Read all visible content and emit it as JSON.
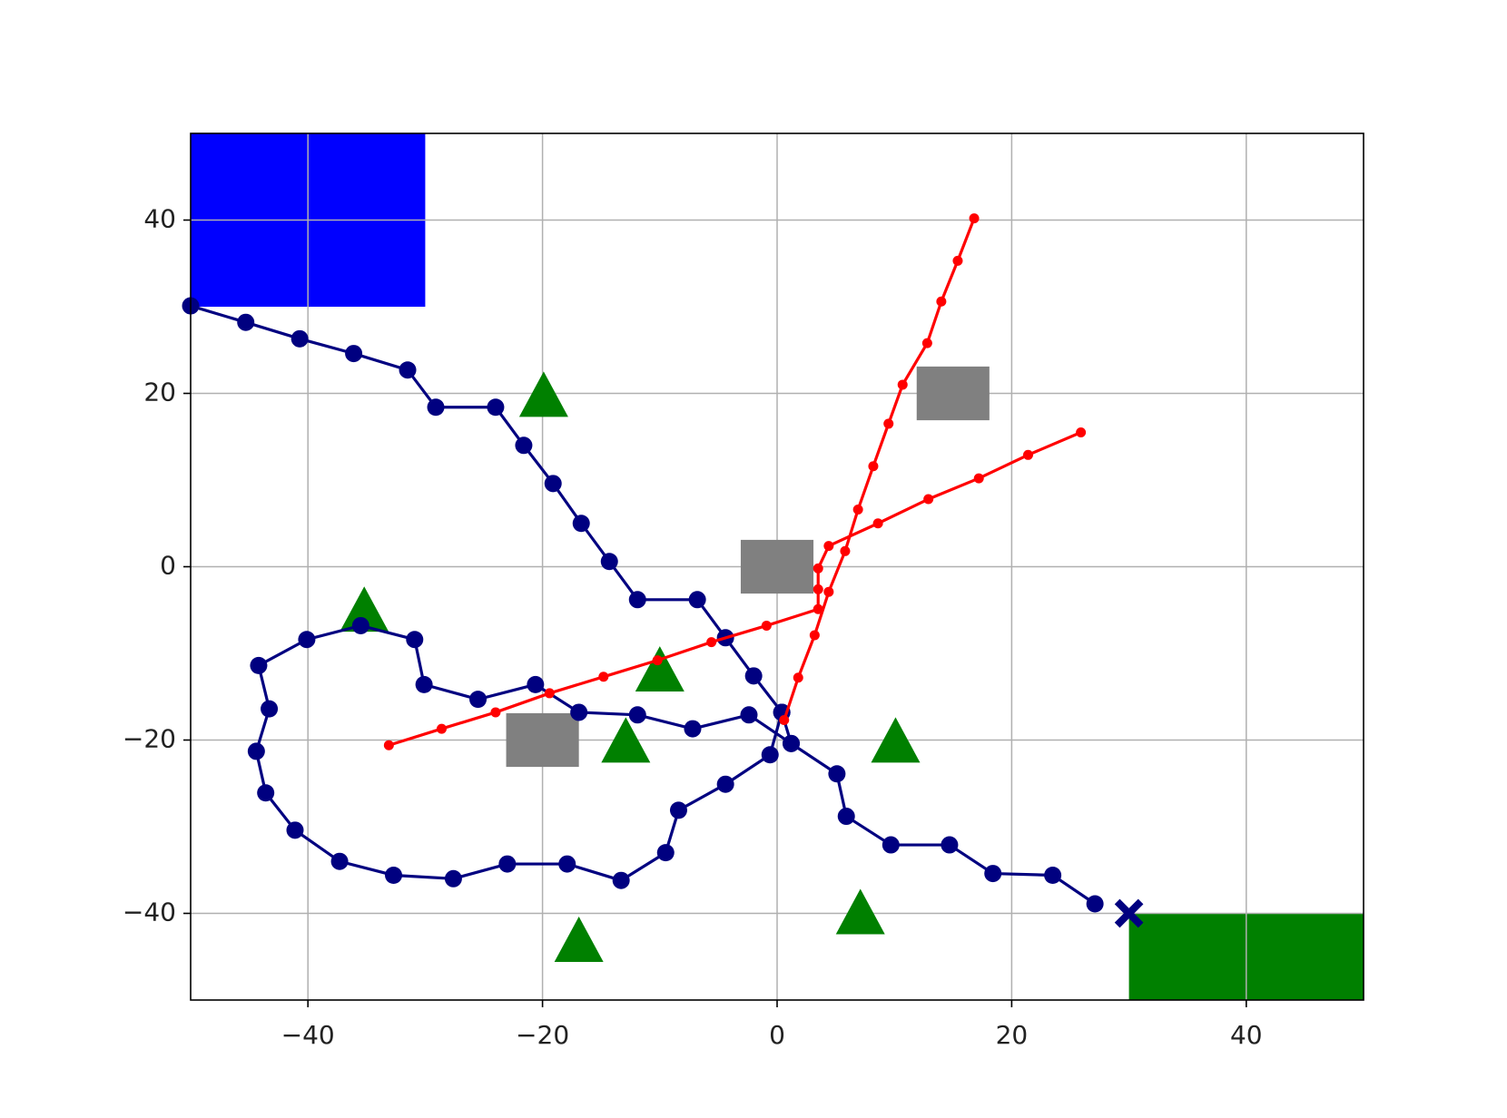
{
  "chart_data": {
    "type": "line",
    "xlim": [
      -50,
      50
    ],
    "ylim": [
      -50,
      50
    ],
    "xticks": [
      {
        "value": -40,
        "label": "−40"
      },
      {
        "value": -20,
        "label": "−20"
      },
      0,
      20,
      40
    ],
    "yticks": [
      {
        "value": -40,
        "label": "−40"
      },
      {
        "value": -20,
        "label": "−20"
      },
      0,
      20,
      40
    ],
    "grid": true,
    "regions": [
      {
        "x": [
          -50,
          -30
        ],
        "y": [
          30,
          50
        ],
        "color": "#0000ff"
      },
      {
        "x": [
          30,
          50
        ],
        "y": [
          -50,
          -40
        ],
        "color": "#008000"
      }
    ],
    "obstacles": [
      {
        "x": 0,
        "y": 0,
        "size": 6.2,
        "color": "#808080"
      },
      {
        "x": -20,
        "y": -20,
        "size": 6.2,
        "color": "#808080"
      },
      {
        "x": 15,
        "y": 20,
        "size": 6.2,
        "color": "#808080"
      }
    ],
    "triangles": {
      "color": "#008000",
      "x": [
        -19.9,
        -35.2,
        -10.0,
        -12.9,
        10.1,
        7.1,
        -16.9
      ],
      "y": [
        19.7,
        -5.1,
        -12.0,
        -20.2,
        -20.2,
        -40.0,
        -43.2
      ]
    },
    "goal": {
      "x": 30,
      "y": -40,
      "color": "#000080"
    },
    "series": [
      {
        "color": "#000080",
        "marker_size": 9.5,
        "x": [
          -50,
          -45.3,
          -40.7,
          -36.1,
          -31.5,
          -29.1,
          -24.0,
          -21.6,
          -19.1,
          -16.7,
          -14.3,
          -11.9,
          -6.8,
          -4.4,
          -2.0,
          0.4,
          1.2,
          5.1,
          5.9,
          9.7,
          14.7,
          18.4,
          23.5,
          27.1
        ],
        "y": [
          30.1,
          28.2,
          26.3,
          24.6,
          22.7,
          18.4,
          18.4,
          14.0,
          9.6,
          5.0,
          0.6,
          -3.8,
          -3.8,
          -8.2,
          -12.6,
          -16.8,
          -20.4,
          -23.9,
          -28.8,
          -32.1,
          -32.1,
          -35.4,
          -35.6,
          -38.9
        ]
      },
      {
        "color": "#000080",
        "marker_size": 9.5,
        "x": [
          0.4,
          -0.6,
          -4.4,
          -8.4,
          -9.5,
          -13.3,
          -17.9,
          -23.0,
          -27.6,
          -32.7,
          -37.3,
          -41.1,
          -43.6,
          -44.4,
          -43.3,
          -44.2,
          -40.1,
          -35.5,
          -30.9,
          -30.1,
          -25.5,
          -20.6,
          -16.9,
          -11.9,
          -7.2,
          -2.4,
          1.2
        ],
        "y": [
          -16.8,
          -21.7,
          -25.1,
          -28.1,
          -33.0,
          -36.2,
          -34.3,
          -34.3,
          -36.0,
          -35.6,
          -34.0,
          -30.4,
          -26.1,
          -21.3,
          -16.4,
          -11.4,
          -8.4,
          -6.8,
          -8.4,
          -13.6,
          -15.3,
          -13.6,
          -16.8,
          -17.1,
          -18.7,
          -17.1,
          -20.4
        ]
      },
      {
        "color": "#ff0000",
        "marker_size": 5.5,
        "x": [
          0.6,
          1.8,
          3.2,
          4.4,
          5.8,
          6.9,
          8.2,
          9.5,
          10.7,
          12.8,
          14.0,
          15.4,
          16.8
        ],
        "y": [
          -17.7,
          -12.8,
          -7.9,
          -2.9,
          1.8,
          6.6,
          11.6,
          16.5,
          21.0,
          25.8,
          30.6,
          35.3,
          40.2
        ]
      },
      {
        "color": "#ff0000",
        "marker_size": 5.5,
        "x": [
          -33.1,
          -28.6,
          -24.0,
          -19.4,
          -14.8,
          -10.2,
          -5.6,
          -0.9,
          3.5,
          3.5,
          3.5,
          4.4,
          8.6,
          12.9,
          17.2,
          21.4,
          25.9
        ],
        "y": [
          -20.6,
          -18.7,
          -16.8,
          -14.6,
          -12.7,
          -10.8,
          -8.7,
          -6.8,
          -4.9,
          -2.6,
          -0.2,
          2.4,
          5.0,
          7.8,
          10.2,
          12.9,
          15.5
        ]
      }
    ]
  }
}
